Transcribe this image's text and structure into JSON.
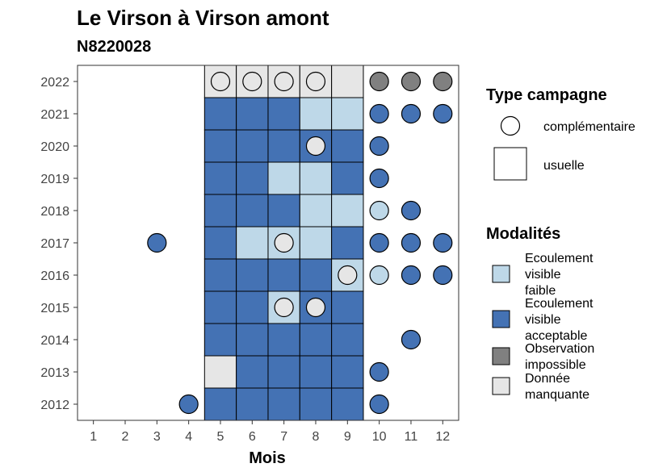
{
  "chart_data": {
    "type": "heatmap",
    "title": "Le Virson à Virson amont",
    "subtitle": "N8220028",
    "xlabel": "Mois",
    "ylabel": "",
    "x_ticks": [
      "1",
      "2",
      "3",
      "4",
      "5",
      "6",
      "7",
      "8",
      "9",
      "10",
      "11",
      "12"
    ],
    "y_ticks": [
      "2012",
      "2013",
      "2014",
      "2015",
      "2016",
      "2017",
      "2018",
      "2019",
      "2020",
      "2021",
      "2022"
    ],
    "grid": false,
    "modalites": {
      "faible": {
        "label": "Ecoulement visible faible",
        "color": "#bed8e8"
      },
      "acceptable": {
        "label": "Ecoulement visible acceptable",
        "color": "#4472b4"
      },
      "impossible": {
        "label": "Observation impossible",
        "color": "#808080"
      },
      "manquante": {
        "label": "Donnée manquante",
        "color": "#e6e6e6"
      }
    },
    "legend_type": {
      "title": "Type campagne",
      "items": [
        {
          "key": "complementaire",
          "label": "complémentaire"
        },
        {
          "key": "usuelle",
          "label": "usuelle"
        }
      ]
    },
    "legend_modalites": {
      "title": "Modalités",
      "items": [
        {
          "key": "faible",
          "lines": [
            "Ecoulement",
            "visible",
            "faible"
          ]
        },
        {
          "key": "acceptable",
          "lines": [
            "Ecoulement",
            "visible",
            "acceptable"
          ]
        },
        {
          "key": "impossible",
          "lines": [
            "Observation",
            "impossible"
          ]
        },
        {
          "key": "manquante",
          "lines": [
            "Donnée",
            "manquante"
          ]
        }
      ]
    },
    "points": [
      {
        "year": 2022,
        "month": 5,
        "type": "usuelle",
        "mod": "manquante"
      },
      {
        "year": 2022,
        "month": 6,
        "type": "usuelle",
        "mod": "manquante"
      },
      {
        "year": 2022,
        "month": 7,
        "type": "usuelle",
        "mod": "manquante"
      },
      {
        "year": 2022,
        "month": 8,
        "type": "usuelle",
        "mod": "manquante"
      },
      {
        "year": 2022,
        "month": 9,
        "type": "usuelle",
        "mod": "manquante"
      },
      {
        "year": 2022,
        "month": 5,
        "type": "complementaire",
        "mod": "manquante"
      },
      {
        "year": 2022,
        "month": 6,
        "type": "complementaire",
        "mod": "manquante"
      },
      {
        "year": 2022,
        "month": 7,
        "type": "complementaire",
        "mod": "manquante"
      },
      {
        "year": 2022,
        "month": 8,
        "type": "complementaire",
        "mod": "manquante"
      },
      {
        "year": 2022,
        "month": 10,
        "type": "complementaire",
        "mod": "impossible"
      },
      {
        "year": 2022,
        "month": 11,
        "type": "complementaire",
        "mod": "impossible"
      },
      {
        "year": 2022,
        "month": 12,
        "type": "complementaire",
        "mod": "impossible"
      },
      {
        "year": 2021,
        "month": 5,
        "type": "usuelle",
        "mod": "acceptable"
      },
      {
        "year": 2021,
        "month": 6,
        "type": "usuelle",
        "mod": "acceptable"
      },
      {
        "year": 2021,
        "month": 7,
        "type": "usuelle",
        "mod": "acceptable"
      },
      {
        "year": 2021,
        "month": 8,
        "type": "usuelle",
        "mod": "faible"
      },
      {
        "year": 2021,
        "month": 9,
        "type": "usuelle",
        "mod": "faible"
      },
      {
        "year": 2021,
        "month": 10,
        "type": "complementaire",
        "mod": "acceptable"
      },
      {
        "year": 2021,
        "month": 11,
        "type": "complementaire",
        "mod": "acceptable"
      },
      {
        "year": 2021,
        "month": 12,
        "type": "complementaire",
        "mod": "acceptable"
      },
      {
        "year": 2020,
        "month": 5,
        "type": "usuelle",
        "mod": "acceptable"
      },
      {
        "year": 2020,
        "month": 6,
        "type": "usuelle",
        "mod": "acceptable"
      },
      {
        "year": 2020,
        "month": 7,
        "type": "usuelle",
        "mod": "acceptable"
      },
      {
        "year": 2020,
        "month": 8,
        "type": "usuelle",
        "mod": "acceptable"
      },
      {
        "year": 2020,
        "month": 9,
        "type": "usuelle",
        "mod": "acceptable"
      },
      {
        "year": 2020,
        "month": 8,
        "type": "complementaire",
        "mod": "manquante"
      },
      {
        "year": 2020,
        "month": 10,
        "type": "complementaire",
        "mod": "acceptable"
      },
      {
        "year": 2019,
        "month": 5,
        "type": "usuelle",
        "mod": "acceptable"
      },
      {
        "year": 2019,
        "month": 6,
        "type": "usuelle",
        "mod": "acceptable"
      },
      {
        "year": 2019,
        "month": 7,
        "type": "usuelle",
        "mod": "faible"
      },
      {
        "year": 2019,
        "month": 8,
        "type": "usuelle",
        "mod": "faible"
      },
      {
        "year": 2019,
        "month": 9,
        "type": "usuelle",
        "mod": "acceptable"
      },
      {
        "year": 2019,
        "month": 10,
        "type": "complementaire",
        "mod": "acceptable"
      },
      {
        "year": 2018,
        "month": 5,
        "type": "usuelle",
        "mod": "acceptable"
      },
      {
        "year": 2018,
        "month": 6,
        "type": "usuelle",
        "mod": "acceptable"
      },
      {
        "year": 2018,
        "month": 7,
        "type": "usuelle",
        "mod": "acceptable"
      },
      {
        "year": 2018,
        "month": 8,
        "type": "usuelle",
        "mod": "faible"
      },
      {
        "year": 2018,
        "month": 9,
        "type": "usuelle",
        "mod": "faible"
      },
      {
        "year": 2018,
        "month": 10,
        "type": "complementaire",
        "mod": "faible"
      },
      {
        "year": 2018,
        "month": 11,
        "type": "complementaire",
        "mod": "acceptable"
      },
      {
        "year": 2017,
        "month": 3,
        "type": "complementaire",
        "mod": "acceptable"
      },
      {
        "year": 2017,
        "month": 5,
        "type": "usuelle",
        "mod": "acceptable"
      },
      {
        "year": 2017,
        "month": 6,
        "type": "usuelle",
        "mod": "faible"
      },
      {
        "year": 2017,
        "month": 7,
        "type": "usuelle",
        "mod": "faible"
      },
      {
        "year": 2017,
        "month": 8,
        "type": "usuelle",
        "mod": "faible"
      },
      {
        "year": 2017,
        "month": 9,
        "type": "usuelle",
        "mod": "acceptable"
      },
      {
        "year": 2017,
        "month": 7,
        "type": "complementaire",
        "mod": "manquante"
      },
      {
        "year": 2017,
        "month": 10,
        "type": "complementaire",
        "mod": "acceptable"
      },
      {
        "year": 2017,
        "month": 11,
        "type": "complementaire",
        "mod": "acceptable"
      },
      {
        "year": 2017,
        "month": 12,
        "type": "complementaire",
        "mod": "acceptable"
      },
      {
        "year": 2016,
        "month": 5,
        "type": "usuelle",
        "mod": "acceptable"
      },
      {
        "year": 2016,
        "month": 6,
        "type": "usuelle",
        "mod": "acceptable"
      },
      {
        "year": 2016,
        "month": 7,
        "type": "usuelle",
        "mod": "acceptable"
      },
      {
        "year": 2016,
        "month": 8,
        "type": "usuelle",
        "mod": "acceptable"
      },
      {
        "year": 2016,
        "month": 9,
        "type": "usuelle",
        "mod": "faible"
      },
      {
        "year": 2016,
        "month": 9,
        "type": "complementaire",
        "mod": "manquante"
      },
      {
        "year": 2016,
        "month": 10,
        "type": "complementaire",
        "mod": "faible"
      },
      {
        "year": 2016,
        "month": 11,
        "type": "complementaire",
        "mod": "acceptable"
      },
      {
        "year": 2016,
        "month": 12,
        "type": "complementaire",
        "mod": "acceptable"
      },
      {
        "year": 2015,
        "month": 5,
        "type": "usuelle",
        "mod": "acceptable"
      },
      {
        "year": 2015,
        "month": 6,
        "type": "usuelle",
        "mod": "acceptable"
      },
      {
        "year": 2015,
        "month": 7,
        "type": "usuelle",
        "mod": "faible"
      },
      {
        "year": 2015,
        "month": 8,
        "type": "usuelle",
        "mod": "acceptable"
      },
      {
        "year": 2015,
        "month": 9,
        "type": "usuelle",
        "mod": "acceptable"
      },
      {
        "year": 2015,
        "month": 7,
        "type": "complementaire",
        "mod": "manquante"
      },
      {
        "year": 2015,
        "month": 8,
        "type": "complementaire",
        "mod": "manquante"
      },
      {
        "year": 2014,
        "month": 5,
        "type": "usuelle",
        "mod": "acceptable"
      },
      {
        "year": 2014,
        "month": 6,
        "type": "usuelle",
        "mod": "acceptable"
      },
      {
        "year": 2014,
        "month": 7,
        "type": "usuelle",
        "mod": "acceptable"
      },
      {
        "year": 2014,
        "month": 8,
        "type": "usuelle",
        "mod": "acceptable"
      },
      {
        "year": 2014,
        "month": 9,
        "type": "usuelle",
        "mod": "acceptable"
      },
      {
        "year": 2014,
        "month": 11,
        "type": "complementaire",
        "mod": "acceptable"
      },
      {
        "year": 2013,
        "month": 5,
        "type": "usuelle",
        "mod": "manquante"
      },
      {
        "year": 2013,
        "month": 6,
        "type": "usuelle",
        "mod": "acceptable"
      },
      {
        "year": 2013,
        "month": 7,
        "type": "usuelle",
        "mod": "acceptable"
      },
      {
        "year": 2013,
        "month": 8,
        "type": "usuelle",
        "mod": "acceptable"
      },
      {
        "year": 2013,
        "month": 9,
        "type": "usuelle",
        "mod": "acceptable"
      },
      {
        "year": 2013,
        "month": 10,
        "type": "complementaire",
        "mod": "acceptable"
      },
      {
        "year": 2012,
        "month": 4,
        "type": "complementaire",
        "mod": "acceptable"
      },
      {
        "year": 2012,
        "month": 5,
        "type": "usuelle",
        "mod": "acceptable"
      },
      {
        "year": 2012,
        "month": 6,
        "type": "usuelle",
        "mod": "acceptable"
      },
      {
        "year": 2012,
        "month": 7,
        "type": "usuelle",
        "mod": "acceptable"
      },
      {
        "year": 2012,
        "month": 8,
        "type": "usuelle",
        "mod": "acceptable"
      },
      {
        "year": 2012,
        "month": 9,
        "type": "usuelle",
        "mod": "acceptable"
      },
      {
        "year": 2012,
        "month": 10,
        "type": "complementaire",
        "mod": "acceptable"
      }
    ]
  }
}
